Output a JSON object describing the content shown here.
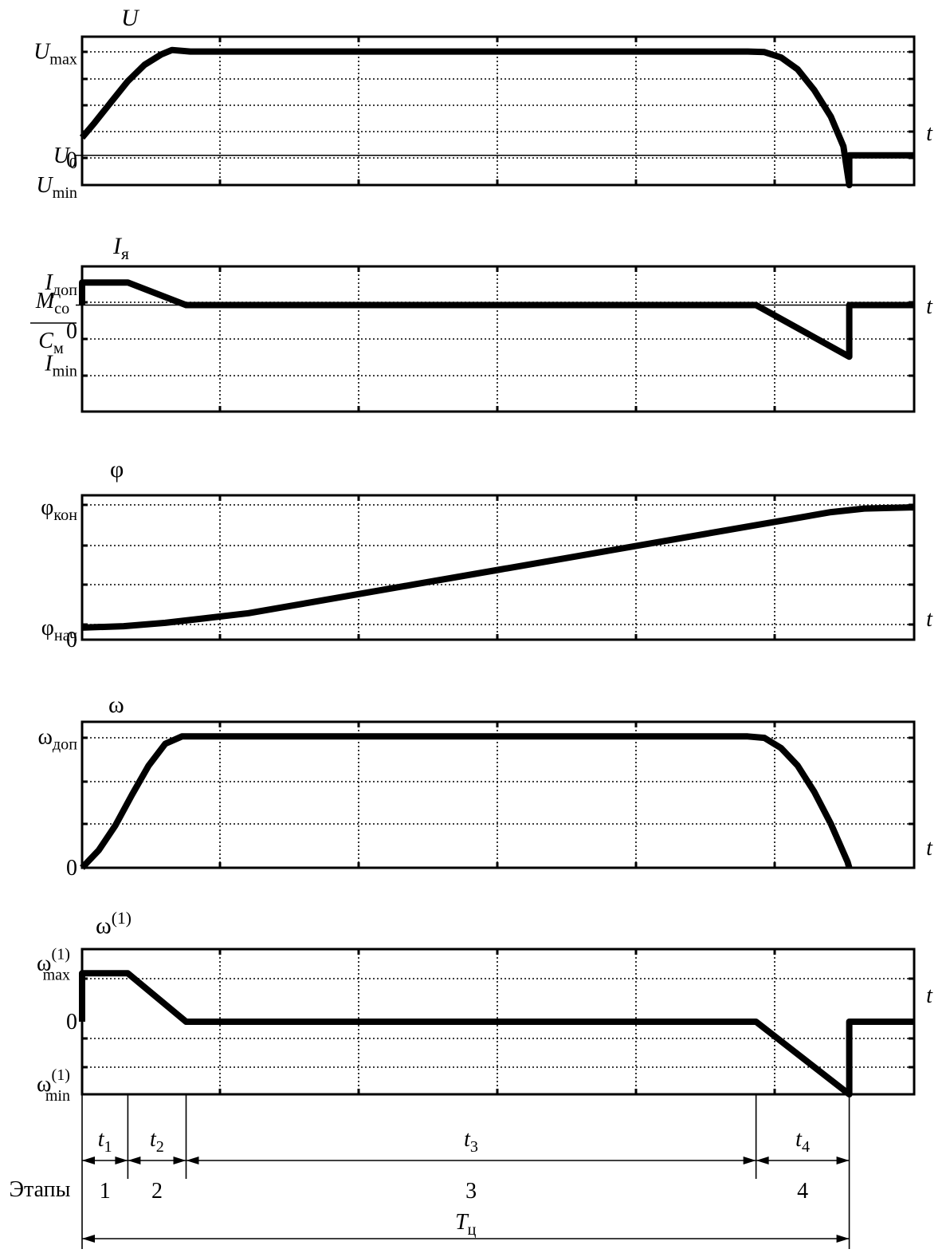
{
  "chart_data": {
    "type": "line",
    "x_time_scale": [
      0,
      10.0
    ],
    "panels": [
      {
        "id": "voltage",
        "title": "U",
        "xlabel": "t",
        "ylim": [
          -1.0,
          4.0
        ],
        "y_axis_labels": [
          {
            "value": 3.5,
            "main": "U",
            "sub": "max"
          },
          {
            "value": 0.0,
            "main": "U",
            "sub": "0"
          },
          {
            "value": -0.15,
            "main": "0",
            "sub": ""
          },
          {
            "value": -1.0,
            "main": "U",
            "sub": "min"
          }
        ],
        "reference_line": 0.0,
        "series": [
          {
            "values": [
              [
                0,
                0.6
              ],
              [
                0.15,
                1.1
              ],
              [
                0.35,
                1.8
              ],
              [
                0.55,
                2.5
              ],
              [
                0.75,
                3.05
              ],
              [
                0.95,
                3.4
              ],
              [
                1.08,
                3.55
              ],
              [
                1.3,
                3.5
              ],
              [
                2.5,
                3.5
              ],
              [
                5.0,
                3.5
              ],
              [
                7.0,
                3.5
              ],
              [
                8.0,
                3.5
              ],
              [
                8.2,
                3.48
              ],
              [
                8.4,
                3.3
              ],
              [
                8.6,
                2.9
              ],
              [
                8.8,
                2.2
              ],
              [
                9.0,
                1.3
              ],
              [
                9.15,
                0.3
              ],
              [
                9.22,
                -1.0
              ],
              [
                9.22,
                0.0
              ],
              [
                10.0,
                0.0
              ]
            ]
          }
        ]
      },
      {
        "id": "current",
        "title_main": "I",
        "title_sub": "я",
        "xlabel": "t",
        "ylim": [
          -1.5,
          3.0
        ],
        "y_axis_labels": [
          {
            "value": 2.5,
            "main": "I",
            "sub": "доп"
          },
          {
            "value": 1.0,
            "main": "0",
            "sub": ""
          },
          {
            "value": 0.0,
            "main": "I",
            "sub": "min"
          }
        ],
        "y_fraction_label": {
          "value": 2.3,
          "num_main": "M",
          "num_sub": "со",
          "den_main": "C",
          "den_sub": "м"
        },
        "reference_line": 1.8,
        "series": [
          {
            "values": [
              [
                0,
                1.8
              ],
              [
                0,
                2.5
              ],
              [
                0.55,
                2.5
              ],
              [
                1.25,
                1.8
              ],
              [
                5.0,
                1.8
              ],
              [
                8.1,
                1.8
              ],
              [
                9.22,
                0.2
              ],
              [
                9.22,
                1.8
              ],
              [
                10.0,
                1.8
              ]
            ]
          }
        ]
      },
      {
        "id": "angle",
        "title": "φ",
        "xlabel": "t",
        "ylim": [
          -0.1,
          1.1
        ],
        "y_axis_labels": [
          {
            "value": 1.0,
            "main": "φ",
            "sub": "кон"
          },
          {
            "value": 0.0,
            "main": "φ",
            "sub": "нач"
          },
          {
            "value": -0.1,
            "main": "0",
            "sub": ""
          }
        ],
        "series": [
          {
            "values": [
              [
                0,
                0.0
              ],
              [
                0.5,
                0.012
              ],
              [
                1.0,
                0.04
              ],
              [
                1.5,
                0.08
              ],
              [
                2.0,
                0.12
              ],
              [
                3.0,
                0.24
              ],
              [
                4.0,
                0.36
              ],
              [
                5.0,
                0.48
              ],
              [
                6.0,
                0.6
              ],
              [
                7.0,
                0.72
              ],
              [
                8.0,
                0.84
              ],
              [
                8.5,
                0.9
              ],
              [
                9.0,
                0.96
              ],
              [
                9.4,
                0.99
              ],
              [
                10.0,
                1.0
              ]
            ]
          }
        ]
      },
      {
        "id": "speed",
        "title": "ω",
        "xlabel": "t",
        "ylim": [
          0.0,
          1.0
        ],
        "y_axis_labels": [
          {
            "value": 0.9,
            "main": "ω",
            "sub": "доп"
          },
          {
            "value": 0.0,
            "main": "0",
            "sub": ""
          }
        ],
        "series": [
          {
            "values": [
              [
                0,
                0.0
              ],
              [
                0.2,
                0.12
              ],
              [
                0.4,
                0.29
              ],
              [
                0.6,
                0.5
              ],
              [
                0.8,
                0.7
              ],
              [
                1.0,
                0.85
              ],
              [
                1.2,
                0.9
              ],
              [
                1.5,
                0.9
              ],
              [
                5.0,
                0.9
              ],
              [
                8.0,
                0.9
              ],
              [
                8.2,
                0.89
              ],
              [
                8.4,
                0.82
              ],
              [
                8.6,
                0.7
              ],
              [
                8.8,
                0.52
              ],
              [
                9.0,
                0.3
              ],
              [
                9.2,
                0.04
              ],
              [
                9.22,
                0.0
              ]
            ]
          }
        ]
      },
      {
        "id": "acceleration",
        "title_main": "ω",
        "title_sup": "(1)",
        "xlabel": "t",
        "ylim": [
          -1.5,
          1.5
        ],
        "y_axis_labels": [
          {
            "value": 1.0,
            "main": "ω",
            "sup": "(1)",
            "sub": "max"
          },
          {
            "value": 0.0,
            "main": "0",
            "sub": ""
          },
          {
            "value": -1.5,
            "main": "ω",
            "sup": "(1)",
            "sub": "min"
          }
        ],
        "series": [
          {
            "values": [
              [
                0,
                0.0
              ],
              [
                0,
                1.0
              ],
              [
                0.55,
                1.0
              ],
              [
                1.25,
                0.0
              ],
              [
                5.0,
                0.0
              ],
              [
                8.1,
                0.0
              ],
              [
                9.22,
                -1.5
              ],
              [
                9.22,
                0.0
              ],
              [
                10.0,
                0.0
              ]
            ]
          }
        ]
      }
    ],
    "stages": {
      "row_label": "Этапы",
      "intervals": [
        {
          "from": 0.0,
          "to": 0.55,
          "dim": "t",
          "dim_sub": "1",
          "number": "1"
        },
        {
          "from": 0.55,
          "to": 1.25,
          "dim": "t",
          "dim_sub": "2",
          "number": "2"
        },
        {
          "from": 1.25,
          "to": 8.1,
          "dim": "t",
          "dim_sub": "3",
          "number": "3"
        },
        {
          "from": 8.1,
          "to": 9.22,
          "dim": "t",
          "dim_sub": "4",
          "number": "4"
        }
      ],
      "cycle": {
        "from": 0.0,
        "to": 9.22,
        "main": "T",
        "sub": "ц"
      }
    }
  }
}
